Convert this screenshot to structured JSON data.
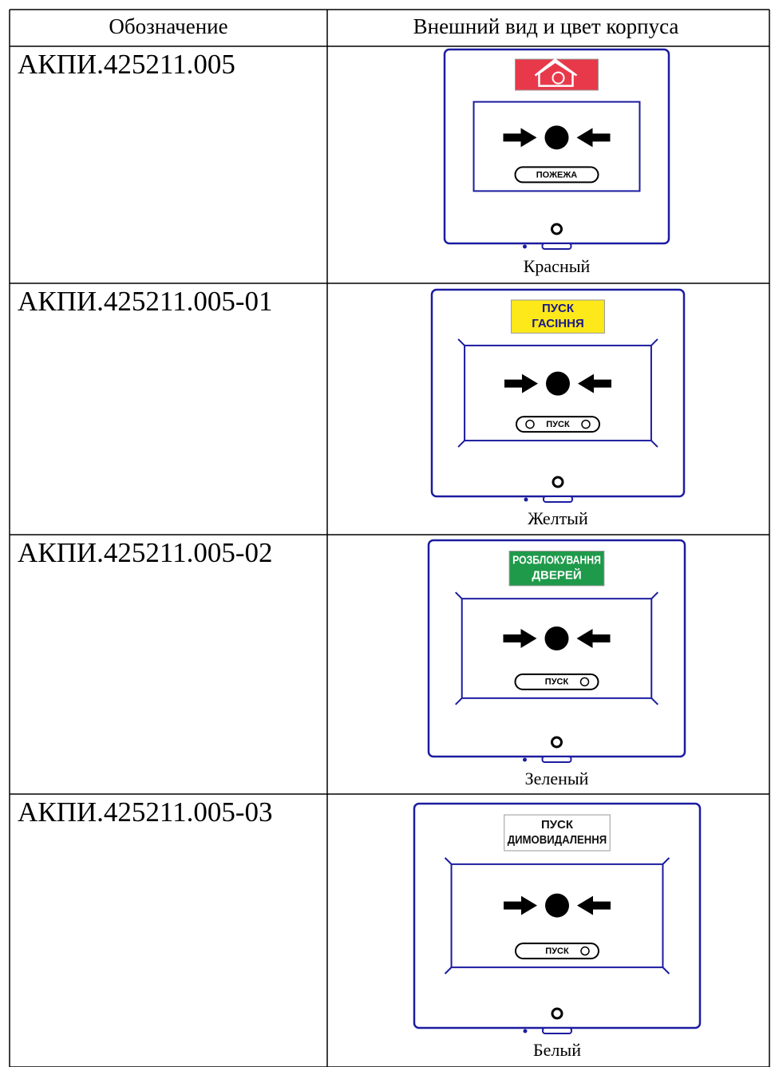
{
  "table": {
    "headers": [
      "Обозначение",
      "Внешний вид и цвет корпуса"
    ],
    "rows": [
      {
        "designation": "АКПИ.425211.005",
        "sign_lines": [],
        "sign_color": "#e8394a",
        "sign_text_color": "#ffffff",
        "button_label": "ПОЖЕЖА",
        "color": "Красный"
      },
      {
        "designation": "АКПИ.425211.005-01",
        "sign_lines": [
          "ПУСК",
          "ГАСІННЯ"
        ],
        "sign_color": "#fde81a",
        "sign_text_color": "#1a1a8a",
        "button_label": "ПУСК",
        "color": "Желтый"
      },
      {
        "designation": "АКПИ.425211.005-02",
        "sign_lines": [
          "РОЗБЛОКУВАННЯ",
          "ДВЕРЕЙ"
        ],
        "sign_color": "#1e9a4a",
        "sign_text_color": "#ffffff",
        "button_label": "ПУСК",
        "color": "Зеленый"
      },
      {
        "designation": "АКПИ.425211.005-03",
        "sign_lines": [
          "ПУСК",
          "ДИМОВИДАЛЕННЯ"
        ],
        "sign_color": "#ffffff",
        "sign_text_color": "#111111",
        "button_label": "ПУСК",
        "color": "Белый"
      }
    ]
  }
}
